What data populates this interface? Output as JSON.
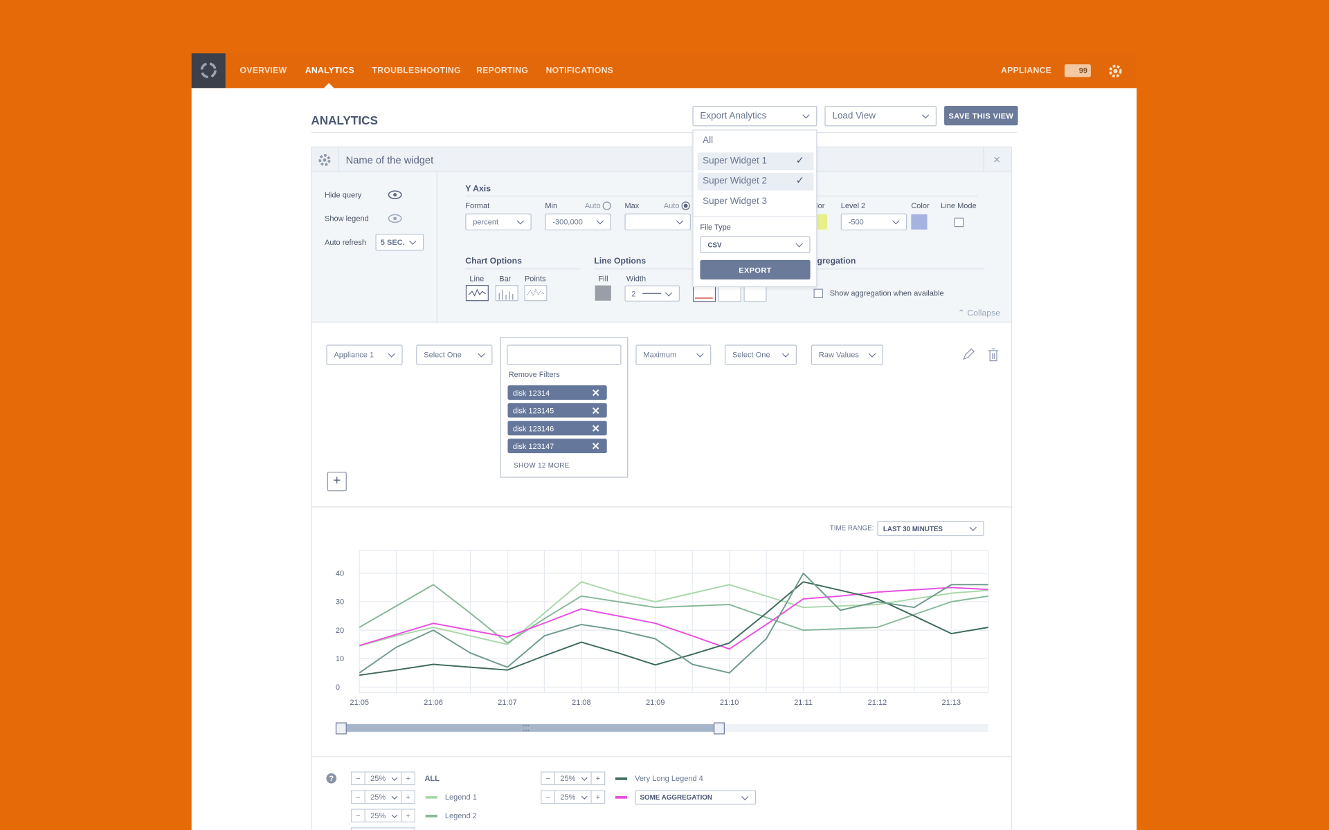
{
  "nav": {
    "items": [
      "OVERVIEW",
      "ANALYTICS",
      "TROUBLESHOOTING",
      "REPORTING",
      "NOTIFICATIONS"
    ],
    "appliance": "APPLIANCE",
    "alerts": "99"
  },
  "header": {
    "title": "ANALYTICS",
    "export": "Export Analytics",
    "load_view": "Load View",
    "save": "SAVE THIS VIEW"
  },
  "export_menu": {
    "items": [
      "All",
      "Super Widget 1",
      "Super Widget 2",
      "Super Widget 3"
    ],
    "file_type_label": "File Type",
    "file_type": "CSV",
    "button": "EXPORT"
  },
  "widget": {
    "name": "Name of the widget",
    "settings": {
      "hide_query": "Hide query",
      "show_legend": "Show legend",
      "auto_refresh": "Auto refresh",
      "refresh_value": "5 SEC."
    },
    "y_axis": {
      "title": "Y Axis",
      "format_label": "Format",
      "format": "percent",
      "min_label": "Min",
      "min_auto": "Auto",
      "min": "-300,000",
      "max_label": "Max",
      "max_auto": "Auto",
      "color_label": "olor",
      "level2_label": "Level 2",
      "level2": "-500",
      "level2_color_label": "Color",
      "line_mode_label": "Line Mode"
    },
    "chart_options": {
      "title": "Chart Options",
      "line": "Line",
      "bar": "Bar",
      "points": "Points"
    },
    "line_options": {
      "title": "Line Options",
      "fill": "Fill",
      "width": "Width",
      "width_value": "2"
    },
    "aggregation": {
      "title": "ggregation",
      "checkbox": "Show aggregation when available"
    },
    "collapse": "Collapse"
  },
  "query": {
    "appliance": "Appliance 1",
    "select1": "Select One",
    "remove_filters": "Remove Filters",
    "filters": [
      "disk 12314",
      "disk 123145",
      "disk 123146",
      "disk 123147"
    ],
    "show_more": "SHOW 12 MORE",
    "metric": "Maximum",
    "select2": "Select One",
    "values": "Raw Values"
  },
  "time_range": {
    "label": "TIME RANGE:",
    "value": "LAST 30 MINUTES"
  },
  "chart_data": {
    "type": "line",
    "categories": [
      "21:05",
      null,
      "21:06",
      null,
      "21:07",
      null,
      "21:08",
      null,
      "21:09",
      null,
      "21:10",
      null,
      "21:11",
      null,
      "21:12",
      null,
      "21:13",
      null
    ],
    "series": [
      {
        "name": "Legend 1",
        "color": "#a9d8a9",
        "values": [
          14.5,
          18,
          21,
          18,
          15,
          26,
          37,
          33,
          30,
          33,
          36,
          32,
          28,
          28.5,
          29,
          31,
          33,
          34
        ]
      },
      {
        "name": "Legend 2",
        "color": "#86b899",
        "values": [
          21,
          28.5,
          36,
          26,
          15.5,
          24,
          32,
          30,
          28,
          28.5,
          29,
          24.5,
          20,
          20.5,
          21,
          25.5,
          30,
          32
        ]
      },
      {
        "name": "SOME AGGREGATION",
        "color": "#e94fe0",
        "values": [
          14.6,
          18.5,
          22.4,
          20,
          17.6,
          22.5,
          27.5,
          25,
          22.4,
          18,
          13.4,
          22,
          31,
          32,
          33.4,
          34.2,
          35,
          34.3
        ]
      },
      {
        "name": "Very Long Legend 4",
        "color": "#3e6a5b",
        "values": [
          4.2,
          6,
          8,
          7,
          6,
          11,
          15.8,
          12,
          7.8,
          11.5,
          15.5,
          26,
          37,
          34,
          31,
          25,
          18.8,
          21
        ]
      },
      {
        "color": "#6f9b8f",
        "values": [
          5,
          14,
          20,
          12,
          7,
          18,
          22,
          20,
          17,
          8,
          5,
          17,
          40,
          27,
          30,
          28,
          36,
          36
        ]
      }
    ],
    "ylim": [
      -2,
      48
    ],
    "yticks": [
      0,
      10,
      20,
      30,
      40
    ],
    "grid": true
  },
  "legend": {
    "all": "ALL",
    "controls": [
      "25%",
      "25%",
      "25%",
      "25%",
      "25%"
    ]
  }
}
